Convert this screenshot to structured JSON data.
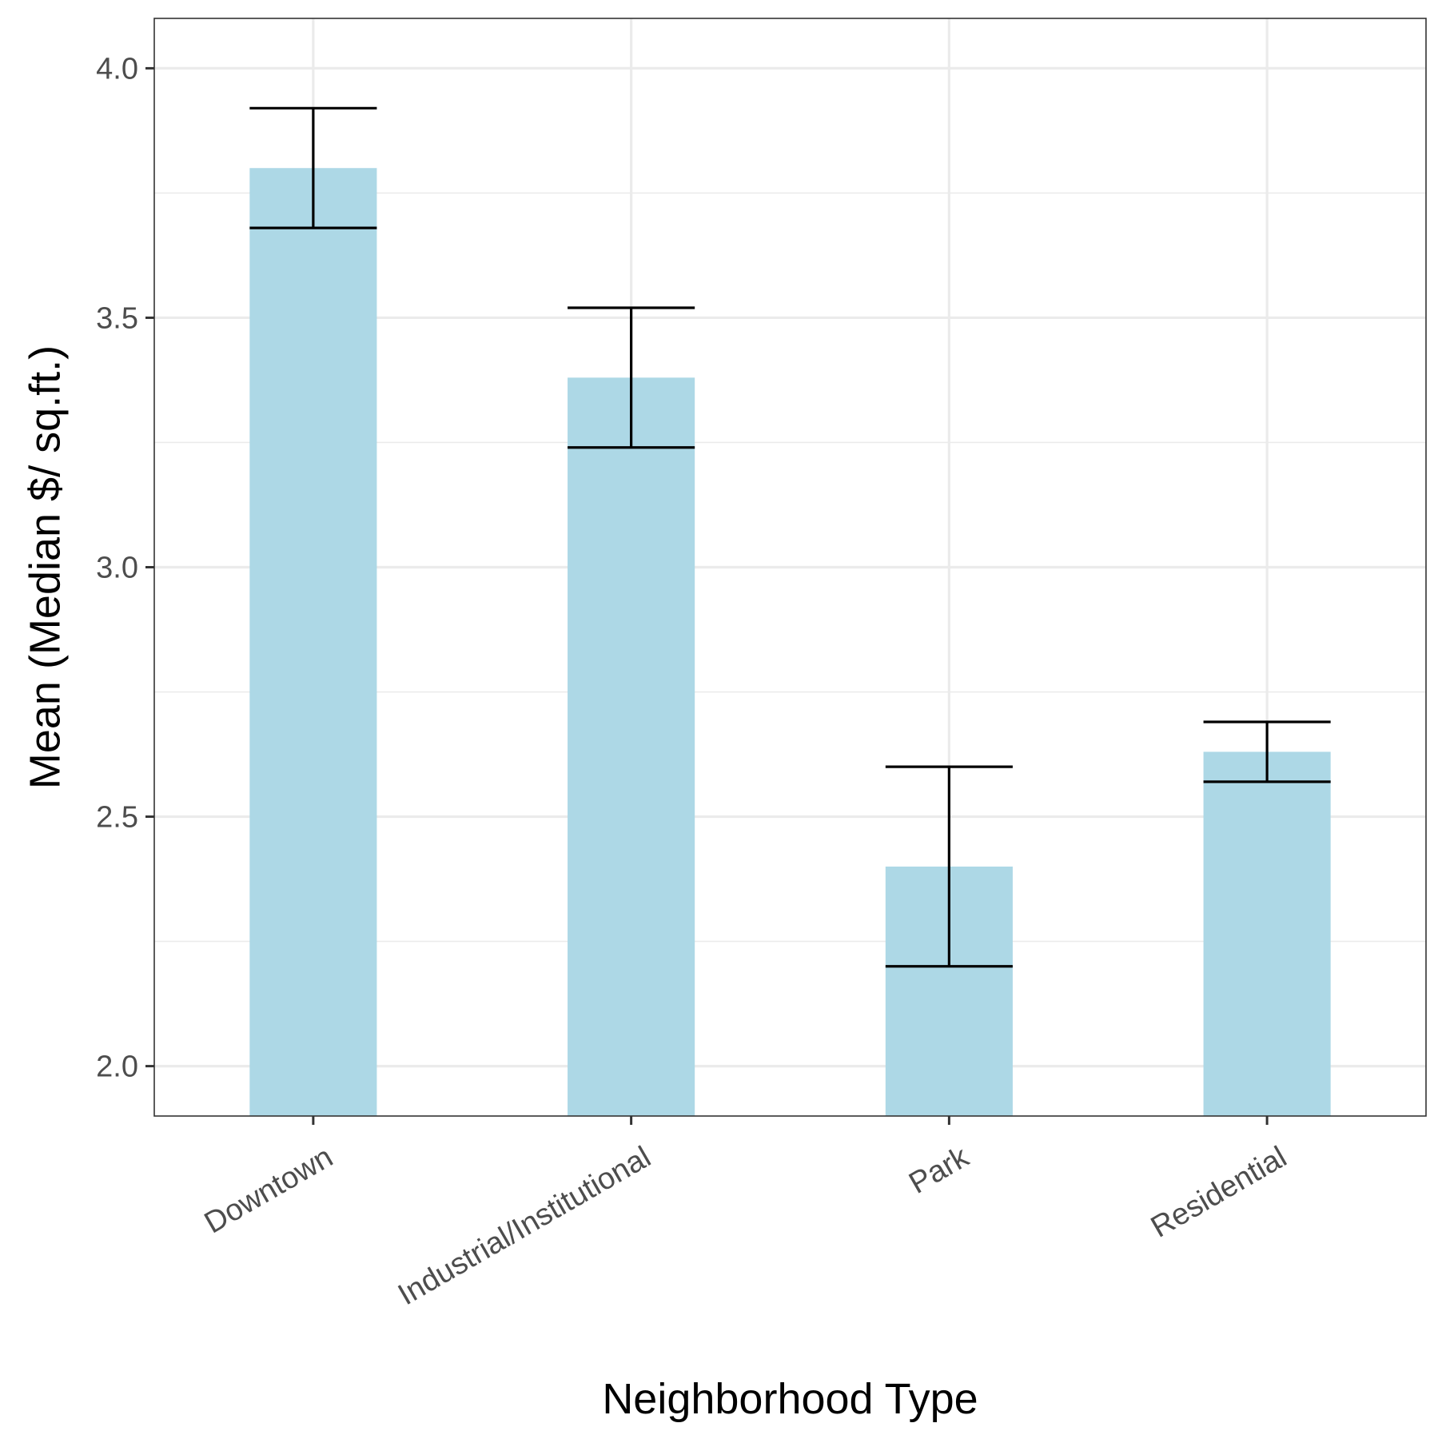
{
  "chart_data": {
    "type": "bar",
    "title": "",
    "xlabel": "Neighborhood Type",
    "ylabel": "Mean (Median $/ sq.ft.)",
    "categories": [
      "Downtown",
      "Industrial/Institutional",
      "Park",
      "Residential"
    ],
    "values": [
      3.8,
      3.38,
      2.4,
      2.63
    ],
    "error_bars": [
      {
        "lower": 3.68,
        "upper": 3.92
      },
      {
        "lower": 3.24,
        "upper": 3.52
      },
      {
        "lower": 2.2,
        "upper": 2.6
      },
      {
        "lower": 2.57,
        "upper": 2.69
      }
    ],
    "ylim": [
      1.9,
      4.1
    ],
    "yticks": [
      2.0,
      2.5,
      3.0,
      3.5,
      4.0
    ],
    "ytick_labels": [
      "2.0",
      "2.5",
      "3.0",
      "3.5",
      "4.0"
    ],
    "grid": true,
    "bar_color": "#add8e6",
    "errorbar_color": "#000000",
    "gridline_color": "#ebebeb",
    "panel_border_color": "#333333"
  }
}
